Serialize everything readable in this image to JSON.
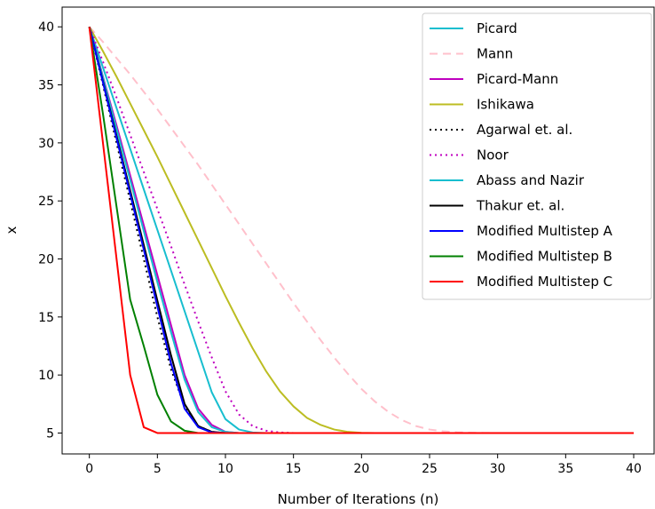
{
  "chart_data": {
    "type": "line",
    "title": "",
    "xlabel": "Number of Iterations (n)",
    "ylabel": "x",
    "xlim": [
      -2,
      41.5
    ],
    "ylim": [
      3.2,
      41.7
    ],
    "xticks": [
      0,
      5,
      10,
      15,
      20,
      25,
      30,
      35,
      40
    ],
    "yticks": [
      5,
      10,
      15,
      20,
      25,
      30,
      35,
      40
    ],
    "grid": false,
    "legend_position": "top-right",
    "x": [
      0,
      1,
      2,
      3,
      4,
      5,
      6,
      7,
      8,
      9,
      10,
      11,
      12,
      13,
      14,
      15,
      16,
      17,
      18,
      19,
      20,
      21,
      22,
      23,
      24,
      25,
      26,
      27,
      28,
      29,
      30,
      31,
      32,
      33,
      34,
      35,
      36,
      37,
      38,
      39,
      40
    ],
    "series": [
      {
        "name": "Picard",
        "color": "#17becf",
        "dash": "solid",
        "values": [
          40,
          36.5,
          33,
          29.5,
          26,
          22.5,
          19,
          15.5,
          12,
          8.5,
          6.2,
          5.3,
          5.05,
          5,
          5,
          5,
          5,
          5,
          5,
          5,
          5,
          5,
          5,
          5,
          5,
          5,
          5,
          5,
          5,
          5,
          5,
          5,
          5,
          5,
          5,
          5,
          5,
          5,
          5,
          5,
          5
        ]
      },
      {
        "name": "Mann",
        "color": "#ffc0cb",
        "dash": "dashed",
        "values": [
          40,
          38.7,
          37.3,
          35.9,
          34.4,
          32.9,
          31.3,
          29.7,
          28.1,
          26.4,
          24.7,
          23,
          21.3,
          19.6,
          17.9,
          16.2,
          14.6,
          13,
          11.5,
          10.1,
          8.8,
          7.7,
          6.8,
          6.1,
          5.6,
          5.3,
          5.15,
          5.07,
          5.03,
          5.01,
          5,
          5,
          5,
          5,
          5,
          5,
          5,
          5,
          5,
          5,
          5
        ]
      },
      {
        "name": "Picard-Mann",
        "color": "#bf00bf",
        "dash": "solid",
        "values": [
          40,
          35.7,
          31.5,
          27.2,
          22.9,
          18.6,
          14.3,
          10,
          7.1,
          5.7,
          5.1,
          5,
          5,
          5,
          5,
          5,
          5,
          5,
          5,
          5,
          5,
          5,
          5,
          5,
          5,
          5,
          5,
          5,
          5,
          5,
          5,
          5,
          5,
          5,
          5,
          5,
          5,
          5,
          5,
          5,
          5
        ]
      },
      {
        "name": "Ishikawa",
        "color": "#bcbd22",
        "dash": "solid",
        "values": [
          40,
          37.9,
          35.7,
          33.4,
          31.1,
          28.8,
          26.4,
          24,
          21.6,
          19.2,
          16.8,
          14.5,
          12.3,
          10.3,
          8.6,
          7.3,
          6.3,
          5.7,
          5.3,
          5.1,
          5.02,
          5,
          5,
          5,
          5,
          5,
          5,
          5,
          5,
          5,
          5,
          5,
          5,
          5,
          5,
          5,
          5,
          5,
          5,
          5,
          5
        ]
      },
      {
        "name": "Agarwal et. al.",
        "color": "#000000",
        "dash": "dotted",
        "values": [
          40,
          35,
          30,
          25,
          20,
          15,
          10.5,
          7.3,
          5.6,
          5.1,
          5,
          5,
          5,
          5,
          5,
          5,
          5,
          5,
          5,
          5,
          5,
          5,
          5,
          5,
          5,
          5,
          5,
          5,
          5,
          5,
          5,
          5,
          5,
          5,
          5,
          5,
          5,
          5,
          5,
          5,
          5
        ]
      },
      {
        "name": "Noor",
        "color": "#bf00bf",
        "dash": "dotted",
        "values": [
          40,
          37,
          33.9,
          30.7,
          27.5,
          24.3,
          21.1,
          17.8,
          14.6,
          11.5,
          8.6,
          6.6,
          5.6,
          5.2,
          5.05,
          5,
          5,
          5,
          5,
          5,
          5,
          5,
          5,
          5,
          5,
          5,
          5,
          5,
          5,
          5,
          5,
          5,
          5,
          5,
          5,
          5,
          5,
          5,
          5,
          5,
          5
        ]
      },
      {
        "name": "Abass and Nazir",
        "color": "#17becf",
        "dash": "solid",
        "values": [
          40,
          35.6,
          31.2,
          26.8,
          22.4,
          18,
          13.7,
          9.6,
          6.8,
          5.5,
          5.1,
          5,
          5,
          5,
          5,
          5,
          5,
          5,
          5,
          5,
          5,
          5,
          5,
          5,
          5,
          5,
          5,
          5,
          5,
          5,
          5,
          5,
          5,
          5,
          5,
          5,
          5,
          5,
          5,
          5,
          5
        ]
      },
      {
        "name": "Thakur et. al.",
        "color": "#000000",
        "dash": "solid",
        "values": [
          40,
          35.3,
          30.6,
          25.9,
          21.2,
          16.4,
          11.7,
          7.5,
          5.6,
          5.1,
          5,
          5,
          5,
          5,
          5,
          5,
          5,
          5,
          5,
          5,
          5,
          5,
          5,
          5,
          5,
          5,
          5,
          5,
          5,
          5,
          5,
          5,
          5,
          5,
          5,
          5,
          5,
          5,
          5,
          5,
          5
        ]
      },
      {
        "name": "Modified Multistep A",
        "color": "#0000ff",
        "dash": "solid",
        "values": [
          40,
          35.2,
          30.4,
          25.6,
          20.8,
          15.9,
          11,
          7.1,
          5.5,
          5.05,
          5,
          5,
          5,
          5,
          5,
          5,
          5,
          5,
          5,
          5,
          5,
          5,
          5,
          5,
          5,
          5,
          5,
          5,
          5,
          5,
          5,
          5,
          5,
          5,
          5,
          5,
          5,
          5,
          5,
          5,
          5
        ]
      },
      {
        "name": "Modified Multistep B",
        "color": "#008000",
        "dash": "solid",
        "values": [
          40,
          32.5,
          24.5,
          16.5,
          12.5,
          8.3,
          6,
          5.2,
          5,
          5,
          5,
          5,
          5,
          5,
          5,
          5,
          5,
          5,
          5,
          5,
          5,
          5,
          5,
          5,
          5,
          5,
          5,
          5,
          5,
          5,
          5,
          5,
          5,
          5,
          5,
          5,
          5,
          5,
          5,
          5,
          5
        ]
      },
      {
        "name": "Modified Multistep C",
        "color": "#ff0000",
        "dash": "solid",
        "values": [
          40,
          30,
          20,
          10,
          5.5,
          5,
          5,
          5,
          5,
          5,
          5,
          5,
          5,
          5,
          5,
          5,
          5,
          5,
          5,
          5,
          5,
          5,
          5,
          5,
          5,
          5,
          5,
          5,
          5,
          5,
          5,
          5,
          5,
          5,
          5,
          5,
          5,
          5,
          5,
          5,
          5
        ]
      }
    ]
  }
}
